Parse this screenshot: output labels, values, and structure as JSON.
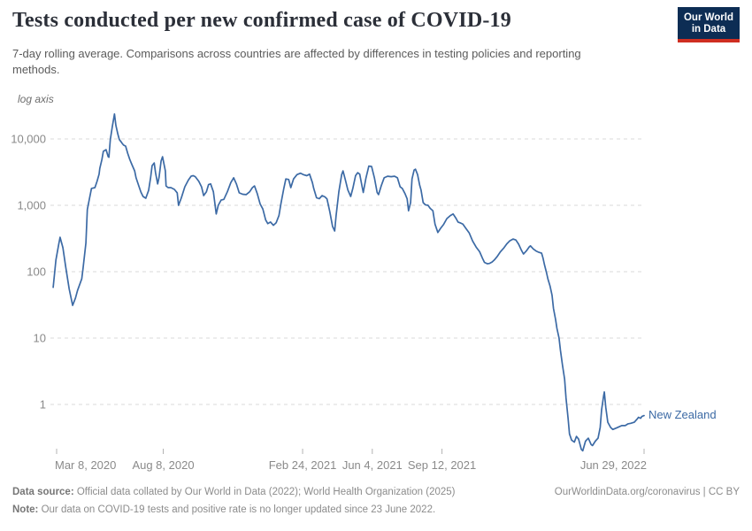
{
  "header": {
    "title": "Tests conducted per new confirmed case of COVID-19",
    "subtitle": "7-day rolling average. Comparisons across countries are affected by differences in testing policies and reporting methods."
  },
  "logo": {
    "line1": "Our World",
    "line2": "in Data"
  },
  "colors": {
    "line": "#3C6AA5",
    "grid": "#d8d8d8",
    "axis_text": "#8a8a8a",
    "tick_mark": "#b3b3b3",
    "log_note": "#6e6e6e",
    "logo_navy": "#0d2d54",
    "logo_red": "#cf2e21",
    "title_text": "#2b2f38",
    "subtitle_text": "#5b5b5b",
    "footer_text": "#8c8c8c"
  },
  "chart_data": {
    "type": "line",
    "title": "Tests conducted per new confirmed case of COVID-19",
    "y_scale": "log",
    "log_note": "log axis",
    "grid": true,
    "legend_position": "end-of-line",
    "ylim": [
      0.15,
      30000
    ],
    "y_ticks": [
      {
        "value": 1,
        "label": "1"
      },
      {
        "value": 10,
        "label": "10"
      },
      {
        "value": 100,
        "label": "100"
      },
      {
        "value": 1000,
        "label": "1,000"
      },
      {
        "value": 10000,
        "label": "10,000"
      }
    ],
    "x_ticks": [
      {
        "date": "2020-03-08",
        "label": "Mar 8, 2020",
        "anchor": "start"
      },
      {
        "date": "2020-08-08",
        "label": "Aug 8, 2020",
        "anchor": "middle"
      },
      {
        "date": "2021-02-24",
        "label": "Feb 24, 2021",
        "anchor": "middle"
      },
      {
        "date": "2021-06-04",
        "label": "Jun 4, 2021",
        "anchor": "middle"
      },
      {
        "date": "2021-09-12",
        "label": "Sep 12, 2021",
        "anchor": "middle"
      },
      {
        "date": "2022-06-29",
        "label": "Jun 29, 2022",
        "anchor": "end"
      }
    ],
    "x_range": [
      "2020-03-03",
      "2022-06-29"
    ],
    "series": [
      {
        "name": "New Zealand",
        "color": "#3C6AA5",
        "points": [
          [
            "2020-03-03",
            58
          ],
          [
            "2020-03-07",
            150
          ],
          [
            "2020-03-11",
            260
          ],
          [
            "2020-03-13",
            330
          ],
          [
            "2020-03-17",
            230
          ],
          [
            "2020-03-21",
            120
          ],
          [
            "2020-03-26",
            55
          ],
          [
            "2020-03-31",
            31
          ],
          [
            "2020-04-04",
            40
          ],
          [
            "2020-04-07",
            52
          ],
          [
            "2020-04-13",
            78
          ],
          [
            "2020-04-15",
            113
          ],
          [
            "2020-04-19",
            270
          ],
          [
            "2020-04-21",
            860
          ],
          [
            "2020-04-24",
            1240
          ],
          [
            "2020-04-27",
            1800
          ],
          [
            "2020-05-02",
            1850
          ],
          [
            "2020-05-05",
            2300
          ],
          [
            "2020-05-08",
            2950
          ],
          [
            "2020-05-09",
            3600
          ],
          [
            "2020-05-12",
            4900
          ],
          [
            "2020-05-14",
            6500
          ],
          [
            "2020-05-18",
            6900
          ],
          [
            "2020-05-21",
            5400
          ],
          [
            "2020-05-22",
            5300
          ],
          [
            "2020-05-24",
            9800
          ],
          [
            "2020-05-27",
            15500
          ],
          [
            "2020-05-30",
            23800
          ],
          [
            "2020-06-01",
            16000
          ],
          [
            "2020-06-04",
            11700
          ],
          [
            "2020-06-06",
            9800
          ],
          [
            "2020-06-09",
            8900
          ],
          [
            "2020-06-10",
            8600
          ],
          [
            "2020-06-12",
            8100
          ],
          [
            "2020-06-15",
            7800
          ],
          [
            "2020-06-18",
            6100
          ],
          [
            "2020-06-21",
            4900
          ],
          [
            "2020-06-24",
            4100
          ],
          [
            "2020-06-28",
            3300
          ],
          [
            "2020-06-30",
            2600
          ],
          [
            "2020-07-04",
            1960
          ],
          [
            "2020-07-07",
            1580
          ],
          [
            "2020-07-10",
            1360
          ],
          [
            "2020-07-14",
            1280
          ],
          [
            "2020-07-18",
            1680
          ],
          [
            "2020-07-21",
            2650
          ],
          [
            "2020-07-23",
            3950
          ],
          [
            "2020-07-26",
            4350
          ],
          [
            "2020-07-28",
            3100
          ],
          [
            "2020-07-31",
            2100
          ],
          [
            "2020-08-02",
            2650
          ],
          [
            "2020-08-05",
            4650
          ],
          [
            "2020-08-07",
            5400
          ],
          [
            "2020-08-11",
            3300
          ],
          [
            "2020-08-12",
            1960
          ],
          [
            "2020-08-15",
            1850
          ],
          [
            "2020-08-19",
            1850
          ],
          [
            "2020-08-24",
            1740
          ],
          [
            "2020-08-28",
            1540
          ],
          [
            "2020-08-30",
            1000
          ],
          [
            "2020-09-03",
            1300
          ],
          [
            "2020-09-08",
            1900
          ],
          [
            "2020-09-13",
            2400
          ],
          [
            "2020-09-17",
            2750
          ],
          [
            "2020-09-20",
            2800
          ],
          [
            "2020-09-23",
            2700
          ],
          [
            "2020-09-28",
            2300
          ],
          [
            "2020-10-02",
            1900
          ],
          [
            "2020-10-05",
            1400
          ],
          [
            "2020-10-09",
            1600
          ],
          [
            "2020-10-12",
            2050
          ],
          [
            "2020-10-15",
            2100
          ],
          [
            "2020-10-19",
            1600
          ],
          [
            "2020-10-23",
            740
          ],
          [
            "2020-10-26",
            1000
          ],
          [
            "2020-10-30",
            1200
          ],
          [
            "2020-11-03",
            1230
          ],
          [
            "2020-11-08",
            1600
          ],
          [
            "2020-11-13",
            2200
          ],
          [
            "2020-11-17",
            2600
          ],
          [
            "2020-11-21",
            2100
          ],
          [
            "2020-11-25",
            1540
          ],
          [
            "2020-11-30",
            1470
          ],
          [
            "2020-12-05",
            1450
          ],
          [
            "2020-12-10",
            1600
          ],
          [
            "2020-12-14",
            1850
          ],
          [
            "2020-12-17",
            1960
          ],
          [
            "2020-12-21",
            1500
          ],
          [
            "2020-12-25",
            1050
          ],
          [
            "2020-12-29",
            880
          ],
          [
            "2021-01-02",
            600
          ],
          [
            "2021-01-05",
            530
          ],
          [
            "2021-01-09",
            560
          ],
          [
            "2021-01-13",
            500
          ],
          [
            "2021-01-17",
            545
          ],
          [
            "2021-01-21",
            700
          ],
          [
            "2021-01-24",
            1070
          ],
          [
            "2021-01-28",
            1800
          ],
          [
            "2021-01-31",
            2500
          ],
          [
            "2021-02-04",
            2450
          ],
          [
            "2021-02-07",
            1850
          ],
          [
            "2021-02-11",
            2500
          ],
          [
            "2021-02-16",
            2900
          ],
          [
            "2021-02-21",
            3050
          ],
          [
            "2021-02-25",
            2900
          ],
          [
            "2021-03-02",
            2800
          ],
          [
            "2021-03-06",
            2950
          ],
          [
            "2021-03-10",
            2200
          ],
          [
            "2021-03-12",
            1800
          ],
          [
            "2021-03-16",
            1300
          ],
          [
            "2021-03-20",
            1260
          ],
          [
            "2021-03-24",
            1400
          ],
          [
            "2021-03-28",
            1340
          ],
          [
            "2021-03-31",
            1250
          ],
          [
            "2021-04-04",
            800
          ],
          [
            "2021-04-08",
            480
          ],
          [
            "2021-04-11",
            410
          ],
          [
            "2021-04-13",
            700
          ],
          [
            "2021-04-17",
            1600
          ],
          [
            "2021-04-21",
            2900
          ],
          [
            "2021-04-23",
            3300
          ],
          [
            "2021-04-26",
            2500
          ],
          [
            "2021-04-30",
            1700
          ],
          [
            "2021-05-04",
            1360
          ],
          [
            "2021-05-07",
            1800
          ],
          [
            "2021-05-11",
            2800
          ],
          [
            "2021-05-14",
            3100
          ],
          [
            "2021-05-17",
            2950
          ],
          [
            "2021-05-20",
            2000
          ],
          [
            "2021-05-22",
            1560
          ],
          [
            "2021-05-26",
            2600
          ],
          [
            "2021-05-30",
            3900
          ],
          [
            "2021-06-03",
            3850
          ],
          [
            "2021-06-07",
            2600
          ],
          [
            "2021-06-11",
            1560
          ],
          [
            "2021-06-13",
            1450
          ],
          [
            "2021-06-17",
            2000
          ],
          [
            "2021-06-21",
            2600
          ],
          [
            "2021-06-26",
            2750
          ],
          [
            "2021-07-01",
            2700
          ],
          [
            "2021-07-06",
            2750
          ],
          [
            "2021-07-10",
            2600
          ],
          [
            "2021-07-14",
            1900
          ],
          [
            "2021-07-17",
            1800
          ],
          [
            "2021-07-21",
            1500
          ],
          [
            "2021-07-24",
            1250
          ],
          [
            "2021-07-26",
            830
          ],
          [
            "2021-07-29",
            1100
          ],
          [
            "2021-07-31",
            2500
          ],
          [
            "2021-08-03",
            3400
          ],
          [
            "2021-08-05",
            3500
          ],
          [
            "2021-08-08",
            2900
          ],
          [
            "2021-08-11",
            2000
          ],
          [
            "2021-08-13",
            1700
          ],
          [
            "2021-08-16",
            1100
          ],
          [
            "2021-08-19",
            1020
          ],
          [
            "2021-08-23",
            1000
          ],
          [
            "2021-08-26",
            900
          ],
          [
            "2021-08-30",
            830
          ],
          [
            "2021-09-02",
            520
          ],
          [
            "2021-09-06",
            390
          ],
          [
            "2021-09-10",
            450
          ],
          [
            "2021-09-14",
            510
          ],
          [
            "2021-09-19",
            630
          ],
          [
            "2021-09-24",
            700
          ],
          [
            "2021-09-28",
            740
          ],
          [
            "2021-10-02",
            640
          ],
          [
            "2021-10-05",
            560
          ],
          [
            "2021-10-09",
            540
          ],
          [
            "2021-10-12",
            520
          ],
          [
            "2021-10-17",
            440
          ],
          [
            "2021-10-21",
            385
          ],
          [
            "2021-10-26",
            290
          ],
          [
            "2021-10-31",
            235
          ],
          [
            "2021-11-05",
            200
          ],
          [
            "2021-11-09",
            160
          ],
          [
            "2021-11-12",
            138
          ],
          [
            "2021-11-16",
            132
          ],
          [
            "2021-11-19",
            133
          ],
          [
            "2021-11-23",
            140
          ],
          [
            "2021-11-26",
            150
          ],
          [
            "2021-11-30",
            168
          ],
          [
            "2021-12-05",
            200
          ],
          [
            "2021-12-10",
            230
          ],
          [
            "2021-12-14",
            262
          ],
          [
            "2021-12-18",
            290
          ],
          [
            "2021-12-23",
            310
          ],
          [
            "2021-12-27",
            300
          ],
          [
            "2021-12-31",
            260
          ],
          [
            "2022-01-04",
            210
          ],
          [
            "2022-01-07",
            185
          ],
          [
            "2022-01-11",
            205
          ],
          [
            "2022-01-15",
            235
          ],
          [
            "2022-01-17",
            245
          ],
          [
            "2022-01-21",
            220
          ],
          [
            "2022-01-25",
            205
          ],
          [
            "2022-01-29",
            196
          ],
          [
            "2022-02-02",
            190
          ],
          [
            "2022-02-04",
            160
          ],
          [
            "2022-02-06",
            128
          ],
          [
            "2022-02-09",
            97
          ],
          [
            "2022-02-11",
            78
          ],
          [
            "2022-02-14",
            61
          ],
          [
            "2022-02-17",
            44
          ],
          [
            "2022-02-19",
            28
          ],
          [
            "2022-02-22",
            19
          ],
          [
            "2022-02-24",
            14
          ],
          [
            "2022-02-27",
            10
          ],
          [
            "2022-03-01",
            6.5
          ],
          [
            "2022-03-04",
            3.9
          ],
          [
            "2022-03-07",
            2.4
          ],
          [
            "2022-03-09",
            1.24
          ],
          [
            "2022-03-12",
            0.62
          ],
          [
            "2022-03-14",
            0.36
          ],
          [
            "2022-03-17",
            0.29
          ],
          [
            "2022-03-21",
            0.27
          ],
          [
            "2022-03-24",
            0.33
          ],
          [
            "2022-03-27",
            0.3
          ],
          [
            "2022-03-31",
            0.21
          ],
          [
            "2022-04-02",
            0.2
          ],
          [
            "2022-04-06",
            0.28
          ],
          [
            "2022-04-10",
            0.31
          ],
          [
            "2022-04-14",
            0.25
          ],
          [
            "2022-04-16",
            0.24
          ],
          [
            "2022-04-20",
            0.28
          ],
          [
            "2022-04-24",
            0.31
          ],
          [
            "2022-04-27",
            0.45
          ],
          [
            "2022-04-29",
            0.83
          ],
          [
            "2022-05-02",
            1.35
          ],
          [
            "2022-05-03",
            1.54
          ],
          [
            "2022-05-05",
            0.91
          ],
          [
            "2022-05-08",
            0.54
          ],
          [
            "2022-05-12",
            0.45
          ],
          [
            "2022-05-15",
            0.42
          ],
          [
            "2022-05-20",
            0.44
          ],
          [
            "2022-05-24",
            0.46
          ],
          [
            "2022-05-28",
            0.48
          ],
          [
            "2022-06-02",
            0.48
          ],
          [
            "2022-06-06",
            0.51
          ],
          [
            "2022-06-10",
            0.52
          ],
          [
            "2022-06-15",
            0.54
          ],
          [
            "2022-06-19",
            0.6
          ],
          [
            "2022-06-21",
            0.64
          ],
          [
            "2022-06-24",
            0.62
          ],
          [
            "2022-06-26",
            0.66
          ],
          [
            "2022-06-29",
            0.68
          ]
        ]
      }
    ]
  },
  "footer": {
    "data_source_label": "Data source:",
    "data_source_text": " Official data collated by Our World in Data (2022); World Health Organization (2025)",
    "link": "OurWorldinData.org/coronavirus | CC BY",
    "note_label": "Note:",
    "note_text": " Our data on COVID-19 tests and positive rate is no longer updated since 23 June 2022."
  }
}
